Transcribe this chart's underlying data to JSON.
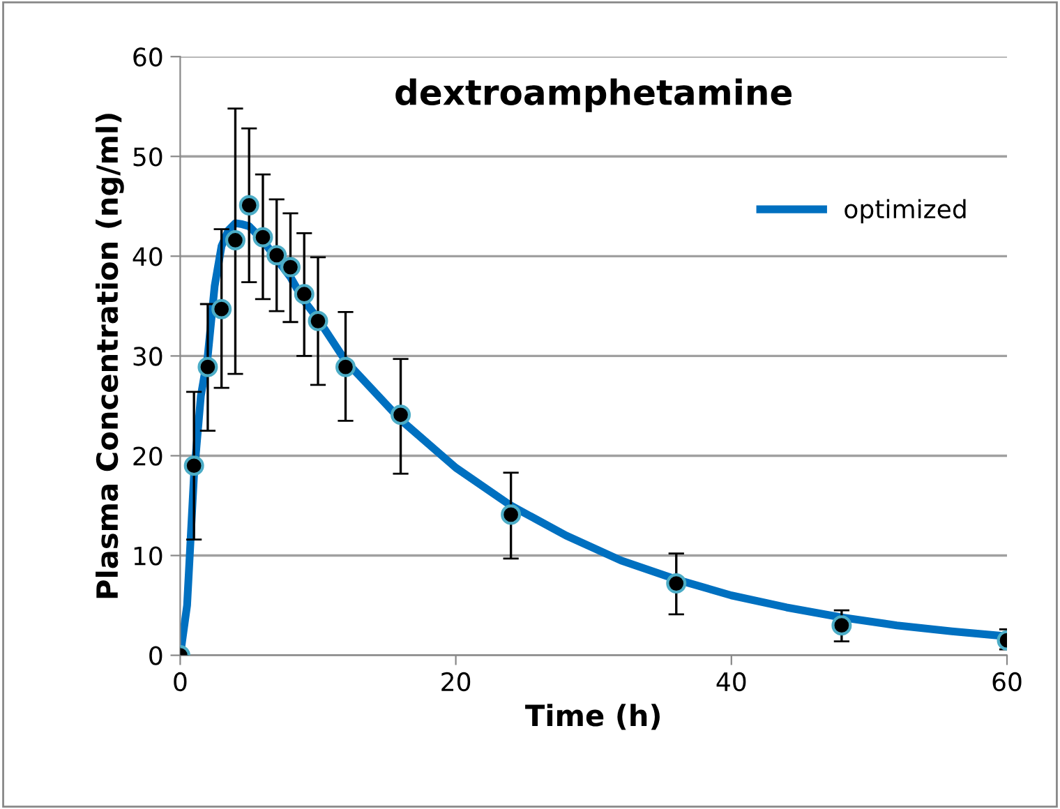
{
  "chart_data": {
    "type": "scatter",
    "title": "dextroamphetamine",
    "xlabel": "Time (h)",
    "ylabel": "Plasma Concentration (ng/ml)",
    "xlim": [
      0,
      60
    ],
    "xticks": [
      0,
      20,
      40,
      60
    ],
    "ylim": [
      0,
      60
    ],
    "yticks": [
      0,
      10,
      20,
      30,
      40,
      50,
      60
    ],
    "grid": "y",
    "legend": "top right",
    "series": [
      {
        "color": "#000000",
        "marker": "circle",
        "x": [
          0,
          1,
          2,
          3,
          4,
          5,
          6,
          7,
          8,
          9,
          10,
          12,
          16,
          24,
          36,
          48,
          60
        ],
        "values": [
          0,
          19.0,
          28.9,
          34.7,
          41.6,
          45.1,
          41.9,
          40.1,
          38.9,
          36.2,
          33.5,
          28.9,
          24.1,
          14.1,
          7.2,
          3.0,
          1.5
        ],
        "errors": [
          null,
          [
            11.6,
            26.4
          ],
          [
            22.5,
            35.2
          ],
          [
            26.8,
            42.7
          ],
          [
            28.2,
            54.8
          ],
          [
            37.4,
            52.8
          ],
          [
            35.7,
            48.2
          ],
          [
            34.5,
            45.7
          ],
          [
            33.4,
            44.3
          ],
          [
            30.0,
            42.3
          ],
          [
            27.1,
            39.9
          ],
          [
            23.5,
            34.4
          ],
          [
            18.2,
            29.7
          ],
          [
            9.7,
            18.3
          ],
          [
            4.1,
            10.2
          ],
          [
            1.4,
            4.5
          ],
          [
            0.6,
            2.6
          ]
        ]
      },
      {
        "type": "line",
        "name": "optimized",
        "color": "#0070c0",
        "marker": "none",
        "line_style": "solid",
        "x": [
          0,
          0.5,
          1,
          1.5,
          2,
          2.5,
          3,
          3.5,
          4,
          4.5,
          5,
          6,
          7,
          8,
          9,
          10,
          12,
          16,
          20,
          24,
          28,
          32,
          36,
          40,
          44,
          48,
          52,
          56,
          60
        ],
        "values": [
          0,
          5,
          18,
          26,
          30,
          37,
          41,
          42.6,
          43.3,
          43.2,
          43,
          41.6,
          39.7,
          37.9,
          35.5,
          33.7,
          29.5,
          23.6,
          18.8,
          15.0,
          12.0,
          9.5,
          7.6,
          6.0,
          4.8,
          3.8,
          3.0,
          2.4,
          1.9
        ]
      }
    ]
  }
}
